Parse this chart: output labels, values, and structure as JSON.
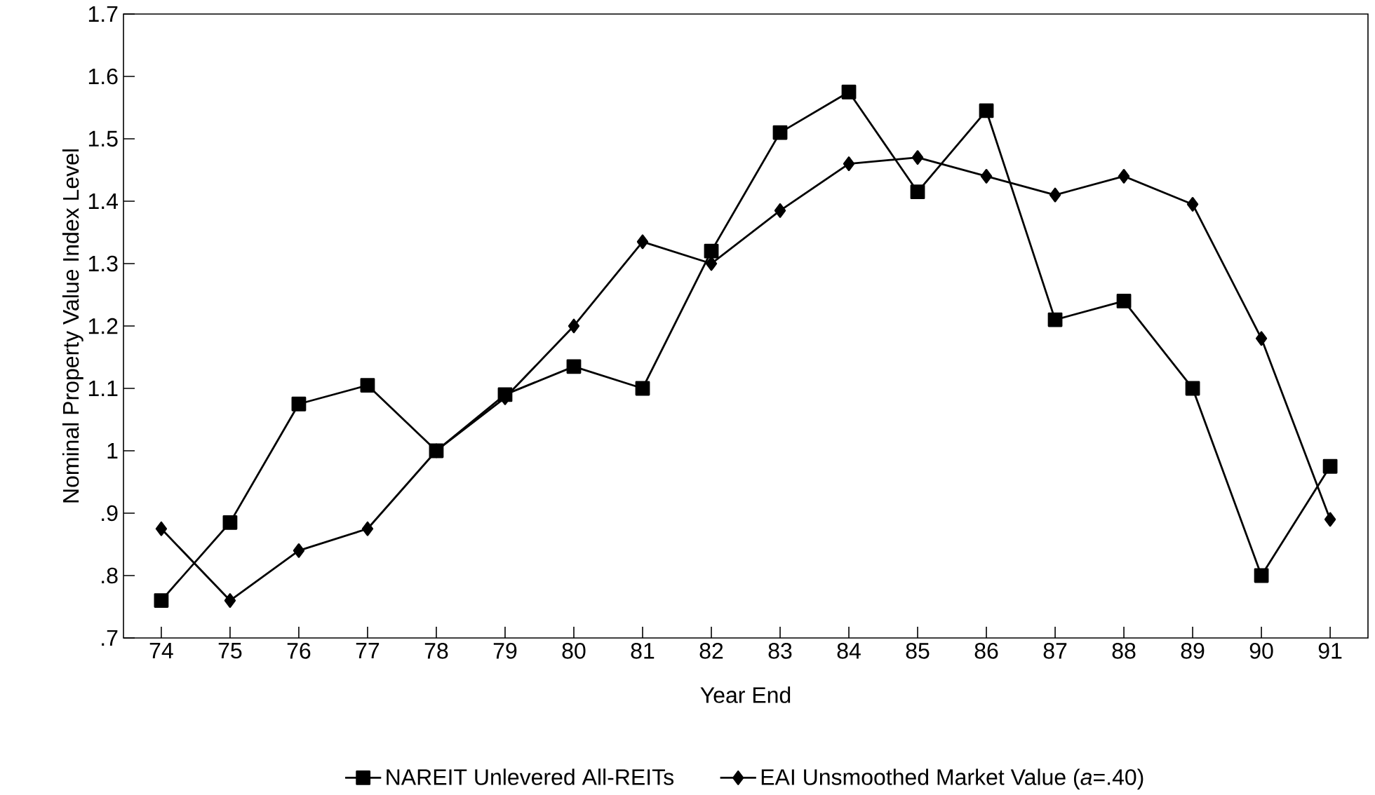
{
  "chart_data": {
    "type": "line",
    "xlabel": "Year End",
    "ylabel": "Nominal Property Value Index Level",
    "categories": [
      "74",
      "75",
      "76",
      "77",
      "78",
      "79",
      "80",
      "81",
      "82",
      "83",
      "84",
      "85",
      "86",
      "87",
      "88",
      "89",
      "90",
      "91"
    ],
    "ylim": [
      0.7,
      1.7
    ],
    "yticks": [
      {
        "value": 0.7,
        "label": ".7"
      },
      {
        "value": 0.8,
        "label": ".8"
      },
      {
        "value": 0.9,
        "label": ".9"
      },
      1,
      1.1,
      1.2,
      1.3,
      1.4,
      1.5,
      1.6,
      1.7
    ],
    "legend": "bottom",
    "grid": false,
    "line_style": "solid",
    "series": [
      {
        "name": "NAREIT Unlevered All-REITs",
        "color": "#000000",
        "marker": "square",
        "values": [
          0.76,
          0.885,
          1.075,
          1.105,
          1.0,
          1.09,
          1.135,
          1.1,
          1.32,
          1.51,
          1.575,
          1.415,
          1.545,
          1.21,
          1.24,
          1.1,
          0.8,
          0.975
        ]
      },
      {
        "name": "EAI Unsmoothed Market Value (*a*=.40)",
        "color": "#000000",
        "marker": "diamond",
        "values": [
          0.875,
          0.76,
          0.84,
          0.875,
          1.0,
          1.085,
          1.2,
          1.335,
          1.3,
          1.385,
          1.46,
          1.47,
          1.44,
          1.41,
          1.44,
          1.395,
          1.18,
          0.89
        ]
      }
    ]
  }
}
